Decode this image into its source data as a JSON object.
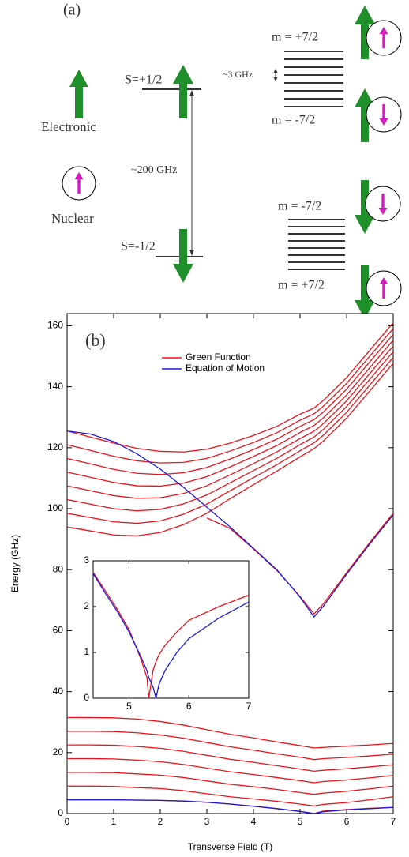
{
  "diagram": {
    "panel_label": "(a)",
    "electronic_label": "Electronic",
    "nuclear_label": "Nuclear",
    "upper_level_label": "S=+1/2",
    "lower_level_label": "S=-1/2",
    "splitting_label": "~200 GHz",
    "hyperfine_label": "~3 GHz",
    "manifolds": [
      {
        "top_label": "m = +7/2",
        "bottom_label": "m = -7/2"
      },
      {
        "top_label": "m = -7/2",
        "bottom_label": "m = +7/2"
      }
    ]
  },
  "chart_data": [
    {
      "type": "line",
      "panel_label": "(b)",
      "x_label": "Transverse Field (T)",
      "y_label": "Energy (GHz)",
      "xlim": [
        0,
        7
      ],
      "ylim": [
        0,
        164
      ],
      "xticks": [
        0,
        1,
        2,
        3,
        4,
        5,
        6,
        7
      ],
      "yticks": [
        0,
        20,
        40,
        60,
        80,
        100,
        120,
        140,
        160
      ],
      "legend": "top",
      "grid": false,
      "x": [
        0,
        0.5,
        1,
        1.5,
        2,
        2.5,
        3,
        3.5,
        4,
        4.5,
        5,
        5.3,
        5.5,
        6,
        6.5,
        7
      ],
      "series": [
        {
          "name": "Green Function",
          "color": "#e8141c",
          "values": [
            125.5,
            123.5,
            121.5,
            119.8,
            118.8,
            118.6,
            119.5,
            121.5,
            124,
            127,
            131,
            133,
            135.5,
            143,
            152,
            161
          ]
        },
        {
          "color": "#e8141c",
          "values": [
            121,
            119.1,
            117.2,
            115.7,
            115,
            115.2,
            116.5,
            118.9,
            121.7,
            124.9,
            129,
            131.1,
            133.6,
            141.1,
            150.1,
            159.1
          ]
        },
        {
          "color": "#e8141c",
          "values": [
            116.5,
            114.7,
            112.9,
            111.6,
            111.2,
            111.8,
            113.5,
            116.3,
            119.4,
            122.8,
            127,
            129.2,
            131.7,
            139.2,
            148.2,
            157.2
          ]
        },
        {
          "color": "#e8141c",
          "values": [
            112,
            110.3,
            108.6,
            107.5,
            107.4,
            108.4,
            110.5,
            113.7,
            117.1,
            120.7,
            125,
            127.3,
            129.8,
            137.3,
            146.3,
            155.3
          ]
        },
        {
          "color": "#e8141c",
          "values": [
            107.5,
            105.9,
            104.3,
            103.4,
            103.6,
            105,
            107.5,
            111.1,
            114.8,
            118.6,
            123,
            125.4,
            127.9,
            135.4,
            144.4,
            153.4
          ]
        },
        {
          "color": "#e8141c",
          "values": [
            103,
            101.5,
            100,
            99.3,
            99.8,
            101.6,
            104.5,
            108.5,
            112.5,
            116.5,
            121,
            123.5,
            126,
            133.5,
            142.5,
            151.5
          ]
        },
        {
          "color": "#e8141c",
          "values": [
            98.5,
            97.1,
            95.7,
            95.2,
            96,
            98.2,
            101.5,
            105.9,
            110.2,
            114.4,
            119,
            121.6,
            124.1,
            131.6,
            140.6,
            149.6
          ]
        },
        {
          "color": "#e8141c",
          "values": [
            94,
            92.7,
            91.4,
            91.1,
            92.2,
            94.8,
            98.5,
            103.3,
            107.9,
            112.3,
            117,
            119.7,
            122.2,
            129.7,
            138.7,
            147.7
          ]
        },
        {
          "color": "#e8141c",
          "values": [
            null,
            null,
            null,
            null,
            null,
            null,
            97,
            93.5,
            86.8,
            79.8,
            71.2,
            65.5,
            68.8,
            79,
            89,
            98.5
          ]
        },
        {
          "color": "#e8141c",
          "values": [
            31.5,
            31.5,
            31.4,
            31,
            30.2,
            29,
            27.5,
            26,
            24.8,
            23.5,
            22.3,
            21.5,
            21.7,
            22.1,
            22.5,
            23
          ]
        },
        {
          "color": "#e8141c",
          "values": [
            27,
            27,
            26.9,
            26.5,
            25.8,
            24.7,
            23.3,
            21.9,
            20.8,
            19.6,
            18.5,
            17.7,
            18,
            18.4,
            18.9,
            19.5
          ]
        },
        {
          "color": "#e8141c",
          "values": [
            22.5,
            22.5,
            22.4,
            22,
            21.4,
            20.4,
            19.1,
            17.8,
            16.8,
            15.7,
            14.6,
            13.9,
            14.2,
            14.7,
            15.3,
            16
          ]
        },
        {
          "color": "#e8141c",
          "values": [
            18,
            18,
            17.9,
            17.5,
            17,
            16.1,
            14.9,
            13.7,
            12.8,
            11.8,
            10.8,
            10.1,
            10.5,
            11,
            11.7,
            12.5
          ]
        },
        {
          "color": "#e8141c",
          "values": [
            13.5,
            13.5,
            13.4,
            13,
            12.6,
            11.8,
            10.7,
            9.6,
            8.8,
            7.9,
            6.9,
            6.3,
            6.7,
            7.3,
            8.1,
            9
          ]
        },
        {
          "color": "#e8141c",
          "values": [
            9,
            9,
            8.9,
            8.5,
            8.2,
            7.5,
            6.5,
            5.5,
            4.8,
            4,
            3.1,
            2.5,
            3,
            3.6,
            4.5,
            5.5
          ]
        },
        {
          "color": "#e8141c",
          "values": [
            4.5,
            4.5,
            4.5,
            4.4,
            4.3,
            4.1,
            3.7,
            3.1,
            2.4,
            1.6,
            0.7,
            0,
            0.8,
            1.3,
            1.7,
            2
          ]
        },
        {
          "name": "Equation of Motion",
          "color": "#1a1ad8",
          "values": [
            125.5,
            124.5,
            122,
            118,
            113,
            107,
            100.5,
            94,
            87,
            80,
            71,
            64.5,
            68,
            78.5,
            88.5,
            98
          ]
        },
        {
          "color": "#1a1ad8",
          "values": [
            4.5,
            4.5,
            4.5,
            4.4,
            4.3,
            4.1,
            3.7,
            3.1,
            2.4,
            1.6,
            0.7,
            0,
            0.6,
            1.2,
            1.6,
            2
          ]
        }
      ]
    },
    {
      "type": "line",
      "xlim": [
        4.4,
        7
      ],
      "ylim": [
        0,
        3
      ],
      "xticks": [
        5,
        6,
        7
      ],
      "yticks": [
        0,
        1,
        2,
        3
      ],
      "x": [
        4.4,
        4.6,
        4.8,
        5,
        5.2,
        5.3,
        5.33,
        5.4,
        5.45,
        5.5,
        5.6,
        5.8,
        6,
        6.5,
        7
      ],
      "series": [
        {
          "color": "#e8141c",
          "values": [
            2.75,
            2.35,
            1.95,
            1.5,
            0.85,
            0.45,
            0,
            0.6,
            0.8,
            0.95,
            1.15,
            1.45,
            1.7,
            2,
            2.25
          ]
        },
        {
          "color": "#1a1ad8",
          "values": [
            2.72,
            2.3,
            1.9,
            1.45,
            0.9,
            0.6,
            0.45,
            0.25,
            0,
            0.3,
            0.6,
            1,
            1.3,
            1.75,
            2.1
          ]
        }
      ]
    }
  ]
}
